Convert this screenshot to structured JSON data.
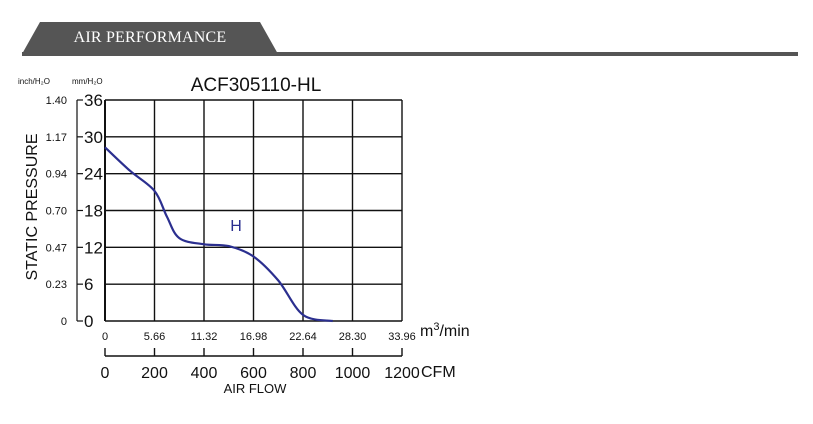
{
  "header": {
    "title": "AIR PERFORMANCE"
  },
  "chart_data": {
    "type": "line",
    "title": "ACF305110-HL",
    "ylabel": "STATIC PRESSURE",
    "xlabel": "AIR FLOW",
    "y_unit_left": "inch/H₂O",
    "y_unit_right": "mm/H₂O",
    "x_unit_top": "m³/min",
    "x_unit_bottom": "CFM",
    "ylim": [
      0,
      36
    ],
    "xlim": [
      0,
      1200
    ],
    "grid": true,
    "y_ticks_mm": [
      "0",
      "6",
      "12",
      "18",
      "24",
      "30",
      "36"
    ],
    "y_ticks_inch": [
      "0",
      "0.23",
      "0.47",
      "0.70",
      "0.94",
      "1.17",
      "1.40"
    ],
    "x_ticks_m3min": [
      "0",
      "5.66",
      "11.32",
      "16.98",
      "22.64",
      "28.30",
      "33.96"
    ],
    "x_ticks_cfm": [
      "0",
      "200",
      "400",
      "600",
      "800",
      "1000",
      "1200"
    ],
    "line_color": "#2b2f8f",
    "series": [
      {
        "name": "H",
        "x": [
          0,
          100,
          200,
          250,
          300,
          400,
          500,
          600,
          700,
          800,
          920
        ],
        "y": [
          28.3,
          24.5,
          21.2,
          17.0,
          13.5,
          12.5,
          12.2,
          10.5,
          6.6,
          1.0,
          0
        ]
      }
    ]
  }
}
